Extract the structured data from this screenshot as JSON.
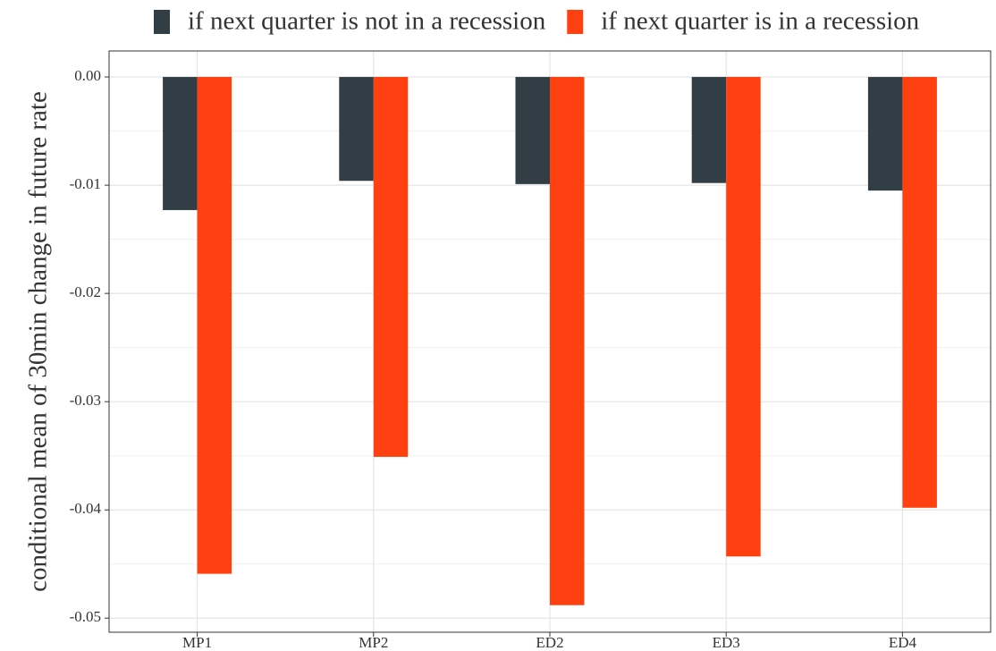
{
  "chart_data": {
    "type": "bar",
    "y_label": "conditional mean of 30min change in future rate",
    "categories": [
      "MP1",
      "MP2",
      "ED2",
      "ED3",
      "ED4"
    ],
    "series": [
      {
        "name": "if next quarter is not in a recession",
        "color": "#323e45",
        "values": [
          -0.0123,
          -0.0096,
          -0.0099,
          -0.0098,
          -0.0105
        ]
      },
      {
        "name": "if next quarter is in a recession",
        "color": "#ff4010",
        "values": [
          -0.0459,
          -0.0351,
          -0.0488,
          -0.0443,
          -0.0398
        ]
      }
    ],
    "ylim": [
      -0.0513,
      0.0024
    ],
    "yticks": [
      {
        "value": 0,
        "label": "0.00"
      },
      {
        "value": -0.01,
        "label": "-0.01"
      },
      {
        "value": -0.02,
        "label": "-0.02"
      },
      {
        "value": -0.03,
        "label": "-0.03"
      },
      {
        "value": -0.04,
        "label": "-0.04"
      },
      {
        "value": -0.05,
        "label": "-0.05"
      }
    ],
    "minor_yticks": [
      -0.005,
      -0.015,
      -0.025,
      -0.035,
      -0.045
    ],
    "grid": true,
    "legend": "top"
  }
}
